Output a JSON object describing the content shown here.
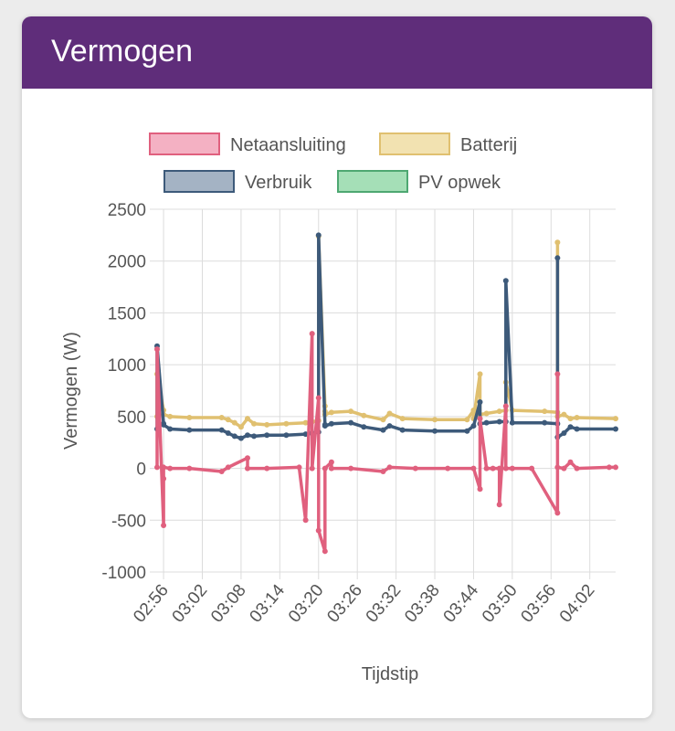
{
  "card": {
    "title": "Vermogen"
  },
  "chart_data": {
    "type": "line",
    "title": "",
    "xlabel": "Tijdstip",
    "ylabel": "Vermogen (W)",
    "ylim": [
      -1000,
      2500
    ],
    "yticks": [
      "2500",
      "2000",
      "1500",
      "1000",
      "500",
      "0",
      "-500",
      "-1000"
    ],
    "yticks_values": [
      2500,
      2000,
      1500,
      1000,
      500,
      0,
      -500,
      -1000
    ],
    "xlim": [
      "02:55",
      "04:06"
    ],
    "xticks": [
      "02:56",
      "03:02",
      "03:08",
      "03:14",
      "03:20",
      "03:26",
      "03:32",
      "03:38",
      "03:44",
      "03:50",
      "03:56",
      "04:02"
    ],
    "grid": true,
    "legend_position": "top",
    "series": [
      {
        "name": "Netaansluiting",
        "color": "#e0607e",
        "fill": "#f4b1c3",
        "x": [
          "02:55",
          "02:55",
          "02:56",
          "02:56",
          "02:56",
          "02:57",
          "03:00",
          "03:05",
          "03:06",
          "03:09",
          "03:09",
          "03:12",
          "03:17",
          "03:18",
          "03:19",
          "03:19",
          "03:20",
          "03:20",
          "03:21",
          "03:21",
          "03:22",
          "03:22",
          "03:25",
          "03:30",
          "03:31",
          "03:35",
          "03:40",
          "03:44",
          "03:45",
          "03:45",
          "03:46",
          "03:47",
          "03:48",
          "03:48",
          "03:49",
          "03:49",
          "03:50",
          "03:53",
          "03:57",
          "03:57",
          "03:57",
          "03:58",
          "03:59",
          "04:00",
          "04:05",
          "04:06"
        ],
        "y": [
          10,
          1150,
          -550,
          -100,
          10,
          0,
          0,
          -30,
          10,
          100,
          0,
          0,
          10,
          -500,
          1300,
          0,
          680,
          -600,
          -800,
          0,
          60,
          0,
          0,
          -30,
          10,
          0,
          0,
          0,
          -200,
          480,
          0,
          0,
          0,
          -350,
          600,
          0,
          0,
          0,
          -430,
          910,
          10,
          0,
          60,
          0,
          10,
          10
        ]
      },
      {
        "name": "Batterij",
        "color": "#e0c070",
        "fill": "#f2e2b1",
        "x": [
          "02:55",
          "02:55",
          "02:56",
          "02:56",
          "02:57",
          "03:00",
          "03:05",
          "03:06",
          "03:07",
          "03:08",
          "03:09",
          "03:10",
          "03:12",
          "03:15",
          "03:18",
          "03:19",
          "03:20",
          "03:20",
          "03:21",
          "03:21",
          "03:21",
          "03:22",
          "03:25",
          "03:27",
          "03:30",
          "03:31",
          "03:33",
          "03:38",
          "03:43",
          "03:44",
          "03:44",
          "03:45",
          "03:45",
          "03:46",
          "03:48",
          "03:49",
          "03:49",
          "03:50",
          "03:55",
          "03:57",
          "03:57",
          "03:57",
          "03:58",
          "03:59",
          "04:00",
          "04:06"
        ],
        "y": [
          500,
          910,
          560,
          520,
          500,
          490,
          490,
          470,
          440,
          400,
          480,
          430,
          420,
          430,
          440,
          450,
          460,
          2240,
          600,
          550,
          520,
          540,
          550,
          510,
          470,
          530,
          480,
          470,
          470,
          560,
          480,
          910,
          520,
          530,
          550,
          560,
          830,
          560,
          550,
          540,
          2180,
          500,
          520,
          480,
          490,
          480
        ]
      },
      {
        "name": "Verbruik",
        "color": "#3d5a7a",
        "fill": "#a4b3c4",
        "x": [
          "02:55",
          "02:55",
          "02:56",
          "02:56",
          "02:57",
          "03:00",
          "03:05",
          "03:06",
          "03:07",
          "03:08",
          "03:09",
          "03:10",
          "03:12",
          "03:15",
          "03:18",
          "03:19",
          "03:20",
          "03:20",
          "03:21",
          "03:21",
          "03:22",
          "03:25",
          "03:27",
          "03:30",
          "03:31",
          "03:33",
          "03:38",
          "03:43",
          "03:44",
          "03:45",
          "03:45",
          "03:46",
          "03:48",
          "03:49",
          "03:49",
          "03:50",
          "03:55",
          "03:57",
          "03:57",
          "03:57",
          "03:58",
          "03:59",
          "04:00",
          "04:06"
        ],
        "y": [
          380,
          1180,
          430,
          420,
          380,
          370,
          370,
          340,
          310,
          290,
          320,
          310,
          320,
          320,
          330,
          340,
          350,
          2250,
          420,
          410,
          430,
          440,
          400,
          370,
          410,
          370,
          360,
          360,
          410,
          640,
          430,
          440,
          450,
          450,
          1810,
          440,
          440,
          430,
          2030,
          300,
          340,
          400,
          380,
          380
        ]
      },
      {
        "name": "PV opwek",
        "color": "#4ea872",
        "fill": "#a5dfb7",
        "x": [],
        "y": []
      }
    ]
  }
}
